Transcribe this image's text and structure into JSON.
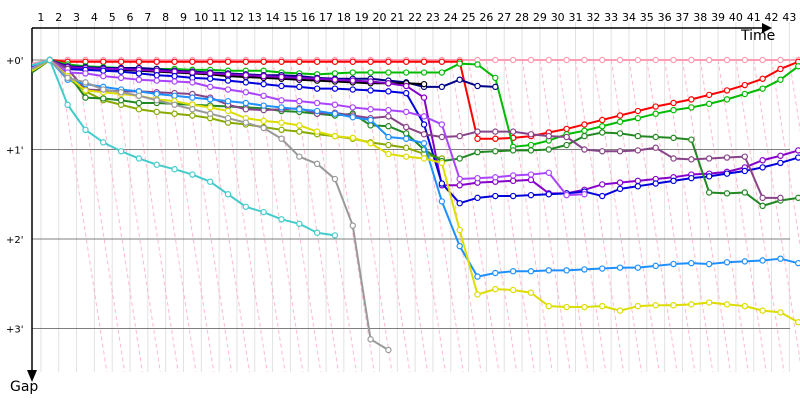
{
  "chart_data": {
    "type": "line",
    "title": "",
    "xlabel": "Time",
    "ylabel": "Gap",
    "x_tick_labels": [
      "1",
      "2",
      "3",
      "4",
      "5",
      "6",
      "7",
      "8",
      "9",
      "10",
      "11",
      "12",
      "13",
      "14",
      "15",
      "16",
      "17",
      "18",
      "19",
      "20",
      "21",
      "22",
      "23",
      "24",
      "25",
      "26",
      "27",
      "28",
      "29",
      "30",
      "31",
      "32",
      "33",
      "34",
      "35",
      "36",
      "37",
      "38",
      "39",
      "40",
      "41",
      "42",
      "43"
    ],
    "y_tick_labels": [
      "+0'",
      "+1'",
      "+2'",
      "+3'"
    ],
    "y_ticks": [
      0,
      1,
      2,
      3
    ],
    "xlim": [
      1,
      45
    ],
    "ylim": [
      0,
      3.3
    ],
    "leader_color": "#ff9db4",
    "series": [
      {
        "color": "#ff9db4",
        "values": [
          0.04,
          0,
          0,
          0,
          0,
          0,
          0,
          0,
          0,
          0,
          0,
          0,
          0,
          0,
          0,
          0,
          0,
          0,
          0,
          0,
          0,
          0,
          0,
          0,
          0,
          0,
          0,
          0,
          0,
          0,
          0,
          0,
          0,
          0,
          0,
          0,
          0,
          0,
          0,
          0,
          0,
          0,
          0,
          0
        ]
      },
      {
        "color": "#ff0000",
        "values": [
          0.07,
          0,
          0.02,
          0.02,
          0.02,
          0.02,
          0.02,
          0.02,
          0.02,
          0.02,
          0.02,
          0.02,
          0.02,
          0.02,
          0.02,
          0.02,
          0.02,
          0.02,
          0.02,
          0.02,
          0.02,
          0.02,
          0.02,
          0.02,
          0.02,
          0.88,
          0.88,
          0.87,
          0.85,
          0.81,
          0.77,
          0.72,
          0.67,
          0.62,
          0.57,
          0.52,
          0.48,
          0.44,
          0.39,
          0.34,
          0.28,
          0.21,
          0.1,
          0.02
        ]
      },
      {
        "color": "#00bb00",
        "values": [
          0.12,
          0,
          0.05,
          0.07,
          0.08,
          0.09,
          0.1,
          0.1,
          0.1,
          0.11,
          0.11,
          0.12,
          0.12,
          0.12,
          0.14,
          0.15,
          0.16,
          0.15,
          0.14,
          0.14,
          0.14,
          0.14,
          0.14,
          0.14,
          0.04,
          0.05,
          0.2,
          0.97,
          0.95,
          0.9,
          0.83,
          0.79,
          0.74,
          0.69,
          0.65,
          0.6,
          0.56,
          0.53,
          0.49,
          0.44,
          0.38,
          0.32,
          0.22,
          0.07
        ]
      },
      {
        "color": "#000088",
        "values": [
          0.07,
          0,
          0.07,
          0.08,
          0.09,
          0.09,
          0.09,
          0.1,
          0.12,
          0.13,
          0.14,
          0.15,
          0.16,
          0.17,
          0.17,
          0.18,
          0.2,
          0.21,
          0.21,
          0.21,
          0.23,
          0.25,
          0.3,
          0.3,
          0.22,
          0.29,
          0.3
        ]
      },
      {
        "color": "#000000",
        "values": [
          0.1,
          0,
          0.1,
          0.11,
          0.11,
          0.11,
          0.12,
          0.13,
          0.14,
          0.15,
          0.16,
          0.18,
          0.19,
          0.2,
          0.21,
          0.22,
          0.23,
          0.24,
          0.25,
          0.26,
          0.26,
          0.26,
          0.27
        ]
      },
      {
        "color": "#8800cc",
        "values": [
          0.12,
          0,
          0.08,
          0.09,
          0.1,
          0.1,
          0.11,
          0.12,
          0.13,
          0.14,
          0.15,
          0.16,
          0.17,
          0.18,
          0.19,
          0.2,
          0.21,
          0.22,
          0.23,
          0.24,
          0.26,
          0.29,
          0.42,
          1.4,
          1.4,
          1.37,
          1.36,
          1.35,
          1.34,
          1.49,
          1.49,
          1.45,
          1.39,
          1.37,
          1.35,
          1.33,
          1.31,
          1.28,
          1.27,
          1.25,
          1.2,
          1.12,
          1.07,
          1.01
        ]
      },
      {
        "color": "#0000dd",
        "values": [
          0.07,
          0,
          0.1,
          0.11,
          0.12,
          0.13,
          0.15,
          0.17,
          0.18,
          0.2,
          0.21,
          0.23,
          0.25,
          0.27,
          0.29,
          0.3,
          0.32,
          0.32,
          0.33,
          0.34,
          0.35,
          0.37,
          0.72,
          1.38,
          1.6,
          1.54,
          1.52,
          1.52,
          1.51,
          1.5,
          1.49,
          1.47,
          1.52,
          1.44,
          1.41,
          1.38,
          1.35,
          1.32,
          1.3,
          1.27,
          1.24,
          1.2,
          1.15,
          1.09,
          1.01
        ]
      },
      {
        "color": "#88aa00",
        "values": [
          0.1,
          0,
          0.2,
          0.35,
          0.45,
          0.5,
          0.55,
          0.58,
          0.6,
          0.62,
          0.65,
          0.7,
          0.72,
          0.75,
          0.78,
          0.8,
          0.83,
          0.85,
          0.88,
          0.92,
          0.95,
          0.98,
          1.05,
          1.1
        ]
      },
      {
        "color": "#228822",
        "values": [
          0.14,
          0,
          0.15,
          0.42,
          0.43,
          0.45,
          0.48,
          0.48,
          0.49,
          0.5,
          0.51,
          0.52,
          0.53,
          0.54,
          0.57,
          0.58,
          0.6,
          0.62,
          0.6,
          0.73,
          0.74,
          0.82,
          1.0,
          1.13,
          1.1,
          1.03,
          1.02,
          1.01,
          1.01,
          1.0,
          0.95,
          0.85,
          0.81,
          0.82,
          0.85,
          0.86,
          0.87,
          0.89,
          1.48,
          1.49,
          1.48,
          1.63,
          1.57,
          1.54,
          1.52
        ]
      },
      {
        "color": "#884488",
        "values": [
          0.1,
          0,
          0.1,
          0.33,
          0.34,
          0.35,
          0.35,
          0.36,
          0.37,
          0.38,
          0.42,
          0.5,
          0.55,
          0.56,
          0.55,
          0.54,
          0.6,
          0.59,
          0.62,
          0.65,
          0.63,
          0.75,
          0.83,
          0.86,
          0.85,
          0.8,
          0.8,
          0.8,
          0.83,
          0.85,
          0.86,
          1.0,
          1.02,
          1.02,
          1.01,
          0.98,
          1.1,
          1.11,
          1.1,
          1.09,
          1.08,
          1.54,
          1.54
        ]
      },
      {
        "color": "#aa44ff",
        "values": [
          0.09,
          0,
          0.14,
          0.15,
          0.18,
          0.2,
          0.22,
          0.23,
          0.24,
          0.25,
          0.3,
          0.33,
          0.36,
          0.4,
          0.45,
          0.46,
          0.48,
          0.5,
          0.53,
          0.55,
          0.56,
          0.58,
          0.63,
          0.72,
          1.33,
          1.32,
          1.31,
          1.29,
          1.28,
          1.26,
          1.51,
          1.5
        ]
      },
      {
        "color": "#1e90ff",
        "values": [
          0.1,
          0,
          0.22,
          0.27,
          0.3,
          0.33,
          0.35,
          0.38,
          0.4,
          0.42,
          0.44,
          0.46,
          0.48,
          0.51,
          0.53,
          0.55,
          0.57,
          0.6,
          0.64,
          0.67,
          0.86,
          0.88,
          0.93,
          1.58,
          2.08,
          2.42,
          2.38,
          2.36,
          2.36,
          2.35,
          2.35,
          2.34,
          2.33,
          2.32,
          2.32,
          2.3,
          2.28,
          2.27,
          2.28,
          2.26,
          2.25,
          2.24,
          2.22,
          2.27,
          2.21
        ]
      },
      {
        "color": "#dddd00",
        "values": [
          0.12,
          0,
          0.18,
          0.34,
          0.36,
          0.38,
          0.4,
          0.44,
          0.46,
          0.5,
          0.53,
          0.57,
          0.65,
          0.68,
          0.7,
          0.73,
          0.8,
          0.85,
          0.87,
          0.93,
          1.05,
          1.08,
          1.1,
          1.15,
          1.9,
          2.62,
          2.56,
          2.57,
          2.6,
          2.75,
          2.76,
          2.76,
          2.75,
          2.8,
          2.75,
          2.74,
          2.74,
          2.73,
          2.71,
          2.73,
          2.75,
          2.8,
          2.82,
          2.93,
          2.87
        ]
      },
      {
        "color": "#999999",
        "values": [
          0.1,
          0,
          0.2,
          0.25,
          0.33,
          0.36,
          0.4,
          0.45,
          0.5,
          0.55,
          0.6,
          0.65,
          0.7,
          0.76,
          0.88,
          1.08,
          1.16,
          1.33,
          1.85,
          3.12,
          3.24
        ]
      },
      {
        "color": "#44cccc",
        "values": [
          0.06,
          0,
          0.5,
          0.78,
          0.92,
          1.02,
          1.1,
          1.17,
          1.22,
          1.28,
          1.36,
          1.5,
          1.64,
          1.7,
          1.78,
          1.83,
          1.93,
          1.96
        ]
      }
    ]
  }
}
